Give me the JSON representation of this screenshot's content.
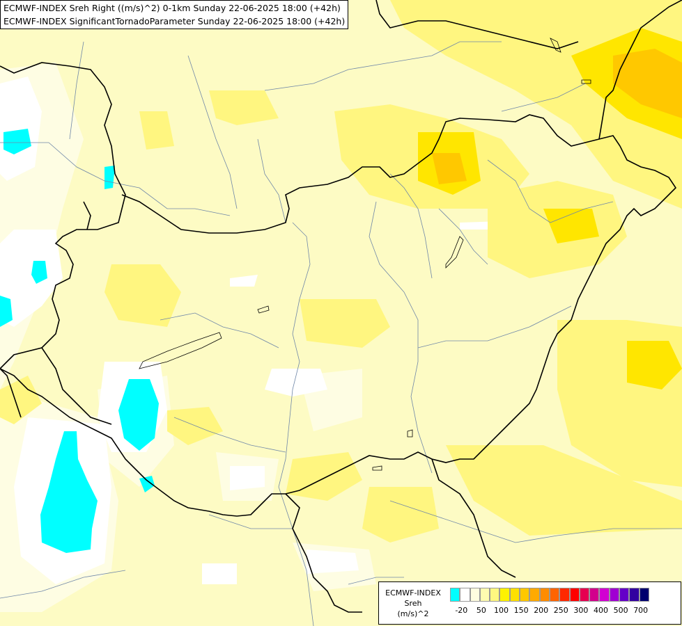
{
  "header": {
    "line1": "ECMWF-INDEX Sreh Right ((m/s)^2) 0-1km Sunday 22-06-2025 18:00 (+42h)",
    "line2": "ECMWF-INDEX SignificantTornadoParameter Sunday 22-06-2025 18:00 (+42h)"
  },
  "legend": {
    "line1": "ECMWF-INDEX",
    "line2": "Sreh",
    "line3": "(m/s)^2",
    "colors": [
      "#00ffff",
      "#ffffff",
      "#fffde0",
      "#fffcb0",
      "#fff880",
      "#fff200",
      "#ffe000",
      "#ffc800",
      "#ffaa00",
      "#ff8c00",
      "#ff6400",
      "#ff2800",
      "#ff0000",
      "#e60050",
      "#d2008c",
      "#d200d2",
      "#a000d2",
      "#6400c8",
      "#3200a0",
      "#00006e"
    ],
    "ticks": [
      "-20",
      "50",
      "100",
      "150",
      "200",
      "250",
      "300",
      "400",
      "500",
      "700"
    ]
  }
}
